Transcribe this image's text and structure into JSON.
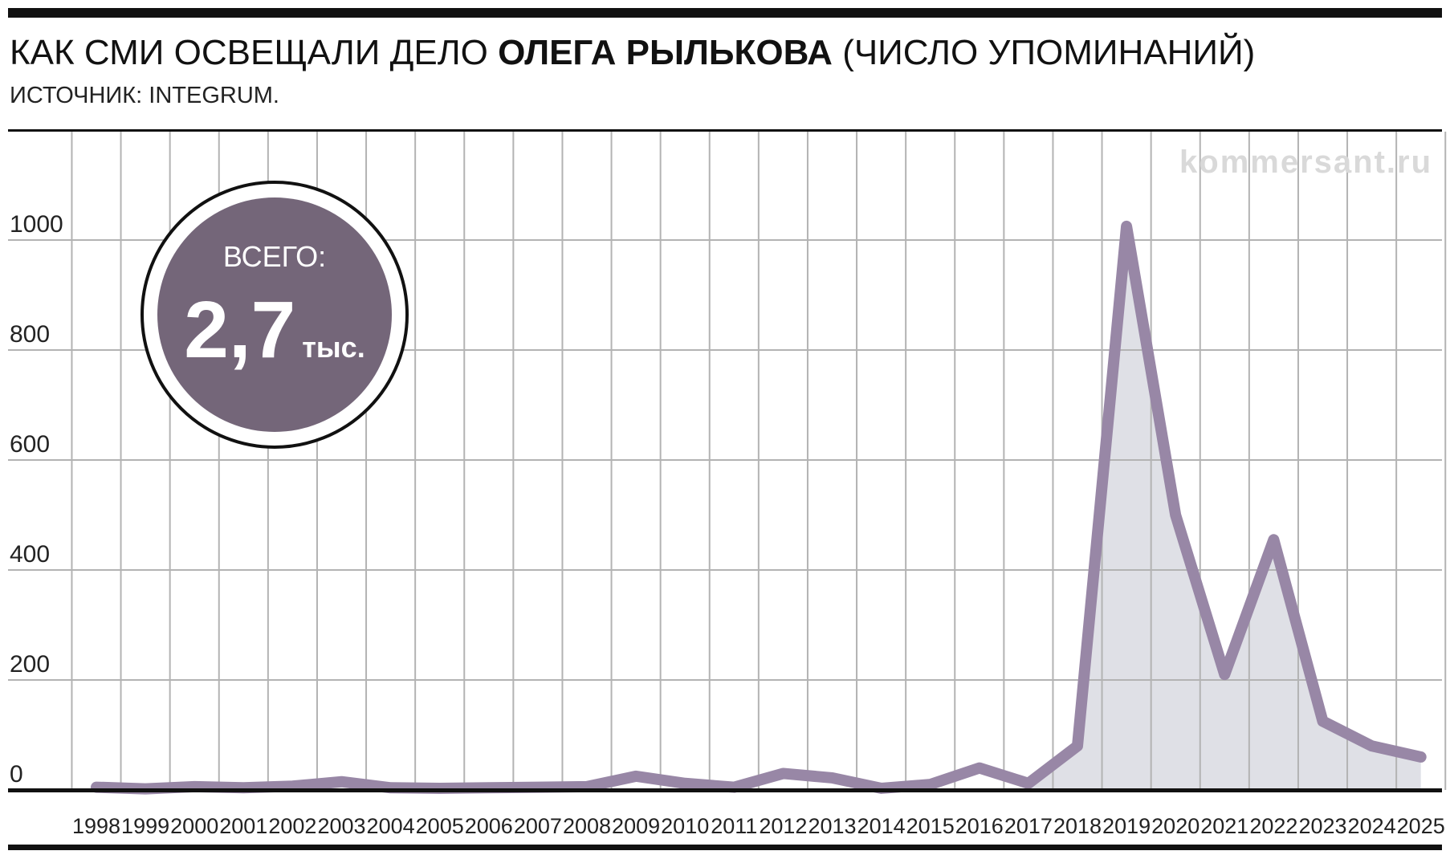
{
  "header": {
    "title_prefix": "КАК СМИ ОСВЕЩАЛИ ДЕЛО ",
    "title_bold": "ОЛЕГА РЫЛЬКОВА",
    "title_suffix": " (ЧИСЛО УПОМИНАНИЙ)",
    "source": "ИСТОЧНИК: INTEGRUM."
  },
  "watermark": "kommersant.ru",
  "badge": {
    "label": "ВСЕГО:",
    "value": "2,7",
    "unit": "тыс."
  },
  "colors": {
    "line": "#9887a6",
    "area": "#dfe0e6",
    "badge_fill": "#746679",
    "grid": "#b3b3b3",
    "rule": "#111111",
    "watermark": "#d9d9d9"
  },
  "chart_data": {
    "type": "line",
    "title": "КАК СМИ ОСВЕЩАЛИ ДЕЛО ОЛЕГА РЫЛЬКОВА (ЧИСЛО УПОМИНАНИЙ)",
    "source": "ИСТОЧНИК: INTEGRUM.",
    "xlabel": "",
    "ylabel": "",
    "ylim": [
      0,
      1200
    ],
    "yticks": [
      0,
      200,
      400,
      600,
      800,
      1000
    ],
    "grid": true,
    "x": [
      "1998",
      "1999",
      "2000",
      "2001",
      "2002",
      "2003",
      "2004",
      "2005",
      "2006",
      "2007",
      "2008",
      "2009",
      "2010",
      "2011",
      "2012",
      "2013",
      "2014",
      "2015",
      "2016",
      "2017",
      "2018",
      "2019",
      "2020",
      "2021",
      "2022",
      "2023",
      "2024",
      "2025"
    ],
    "series": [
      {
        "name": "",
        "values": [
          5,
          2,
          6,
          4,
          7,
          15,
          4,
          3,
          4,
          5,
          6,
          25,
          12,
          5,
          30,
          22,
          3,
          10,
          40,
          12,
          80,
          1025,
          500,
          210,
          455,
          125,
          80,
          60
        ]
      }
    ],
    "shaded_from": "2017"
  }
}
